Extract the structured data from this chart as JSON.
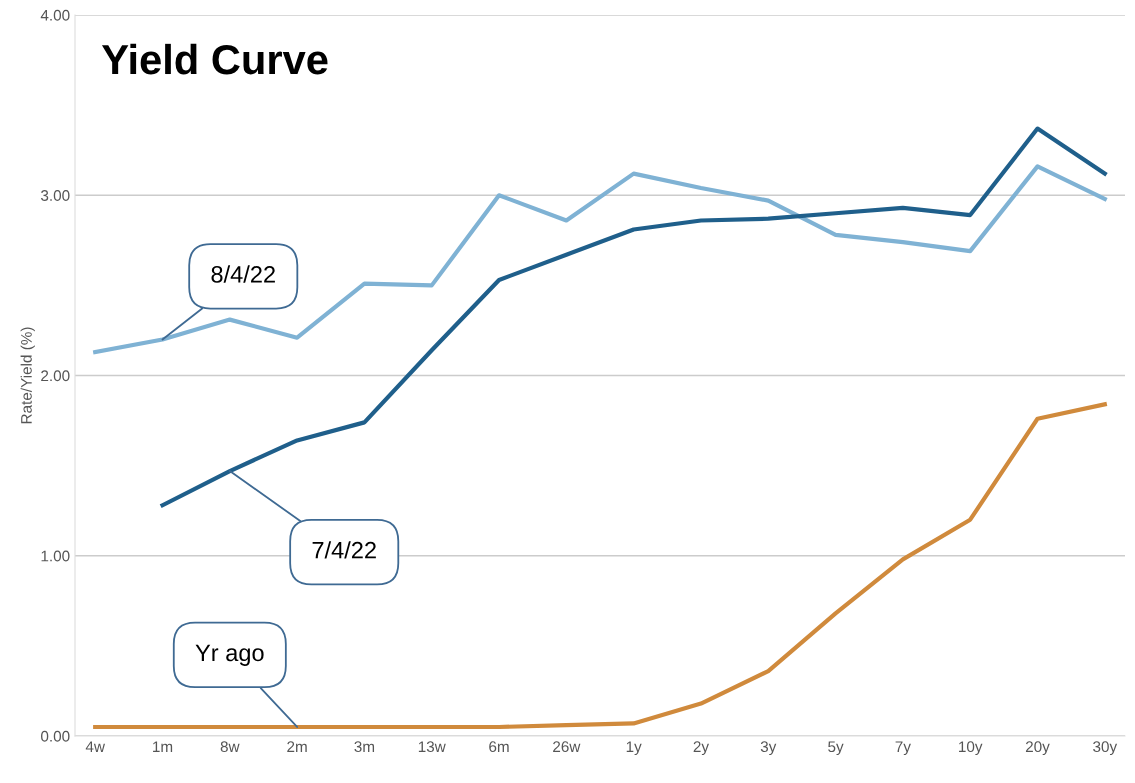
{
  "chart_data": {
    "type": "line",
    "title": "Yield Curve",
    "ylabel": "Rate/Yield (%)",
    "categories": [
      "4w",
      "1m",
      "8w",
      "2m",
      "3m",
      "13w",
      "6m",
      "26w",
      "1y",
      "2y",
      "3y",
      "5y",
      "7y",
      "10y",
      "20y",
      "30y"
    ],
    "series": [
      {
        "color": "#7fb2d4",
        "values": [
          2.13,
          2.2,
          2.31,
          2.21,
          2.51,
          2.5,
          3.0,
          2.86,
          3.12,
          3.04,
          2.97,
          2.78,
          2.74,
          2.69,
          3.16,
          2.98
        ]
      },
      {
        "color": "#1f5f8b",
        "values": [
          null,
          1.28,
          1.47,
          1.64,
          1.74,
          2.14,
          2.53,
          2.67,
          2.81,
          2.86,
          2.87,
          2.9,
          2.93,
          2.89,
          3.37,
          3.12
        ]
      },
      {
        "color": "#d08a3c",
        "values": [
          0.05,
          0.05,
          0.05,
          0.05,
          0.05,
          0.05,
          0.05,
          0.06,
          0.07,
          0.18,
          0.36,
          0.68,
          0.98,
          1.2,
          1.76,
          1.84
        ]
      }
    ],
    "ylim": [
      0,
      4
    ],
    "yticks": [
      {
        "value": 0,
        "label": "0.00"
      },
      {
        "value": 1,
        "label": "1.00"
      },
      {
        "value": 2,
        "label": "2.00"
      },
      {
        "value": 3,
        "label": "3.00"
      },
      {
        "value": 4,
        "label": "4.00"
      }
    ],
    "grid": "y",
    "marker": "none",
    "line_style": "solid",
    "legend": false,
    "annotations": [
      {
        "text": "8/4/22",
        "x": "1m",
        "y": 2.2
      },
      {
        "text": "7/4/22",
        "x": "8w",
        "y": 1.47
      },
      {
        "text": "Yr ago",
        "x": "2m",
        "y": 0.05
      }
    ]
  }
}
